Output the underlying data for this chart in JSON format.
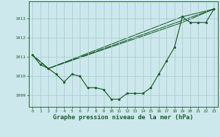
{
  "title": "Graphe pression niveau de la mer (hPa)",
  "background_color": "#cce8ec",
  "grid_color": "#aacccc",
  "line_color": "#1a5c2a",
  "xlim": [
    -0.5,
    23.5
  ],
  "ylim": [
    1008.4,
    1013.9
  ],
  "yticks": [
    1009,
    1010,
    1011,
    1012,
    1013
  ],
  "xticks": [
    0,
    1,
    2,
    3,
    4,
    5,
    6,
    7,
    8,
    9,
    10,
    11,
    12,
    13,
    14,
    15,
    16,
    17,
    18,
    19,
    20,
    21,
    22,
    23
  ],
  "series1_x": [
    0,
    1,
    2,
    3,
    4,
    5,
    6,
    7,
    8,
    9,
    10,
    11,
    12,
    13,
    14,
    15,
    16,
    17,
    18,
    19,
    20,
    21,
    22,
    23
  ],
  "series1_y": [
    1011.1,
    1010.6,
    1010.4,
    1010.1,
    1009.7,
    1010.1,
    1010.0,
    1009.4,
    1009.4,
    1009.3,
    1008.8,
    1008.8,
    1009.1,
    1009.1,
    1009.1,
    1009.4,
    1010.1,
    1010.8,
    1011.5,
    1013.1,
    1012.8,
    1012.8,
    1012.8,
    1013.5
  ],
  "series2_x": [
    0,
    2,
    23
  ],
  "series2_y": [
    1011.1,
    1010.4,
    1013.5
  ],
  "series3_x": [
    0,
    2,
    19,
    23
  ],
  "series3_y": [
    1011.1,
    1010.4,
    1013.1,
    1013.5
  ],
  "series4_x": [
    0,
    2,
    19,
    23
  ],
  "series4_y": [
    1011.1,
    1010.4,
    1012.8,
    1013.5
  ],
  "ylabel_fontsize": 5,
  "xlabel_fontsize": 6.5,
  "tick_fontsize": 4.5
}
